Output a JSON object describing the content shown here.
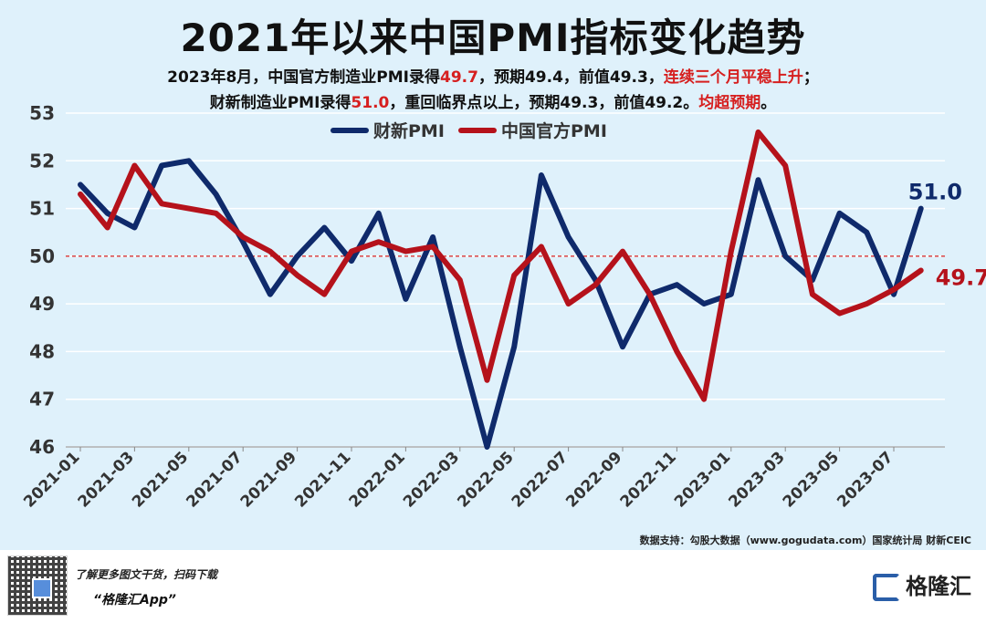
{
  "header": {
    "title": "2021年以来中国PMI指标变化趋势",
    "sub1": {
      "a": "2023年8月，中国官方制造业PMI录得",
      "b": "49.7",
      "c": "，预期49.4，前值49.3，",
      "d": "连续三个月平稳上升",
      "e": "；"
    },
    "sub2": {
      "a": "财新制造业PMI录得",
      "b": "51.0",
      "c": "，重回临界点以上，预期49.3，前值49.2。",
      "d": "均超预期",
      "e": "。"
    }
  },
  "source": "数据支持：勾股大数据（www.gogudata.com）国家统计局 财新CEIC",
  "footer": {
    "promo1": "了解更多图文干货，扫码下载",
    "promo2": "“格隆汇App”",
    "brand": "格隆汇"
  },
  "colors": {
    "caixin": "#0f2a6b",
    "official": "#b5121b",
    "threshold": "#d61f1f",
    "grid": "#ffffff"
  },
  "chart_data": {
    "type": "line",
    "title": "2021年以来中国PMI指标变化趋势",
    "xlabel": "",
    "ylabel": "",
    "ylim": [
      46,
      53
    ],
    "yticks": [
      46,
      47,
      48,
      49,
      50,
      51,
      52,
      53
    ],
    "x": [
      "2021-01",
      "2021-02",
      "2021-03",
      "2021-04",
      "2021-05",
      "2021-06",
      "2021-07",
      "2021-08",
      "2021-09",
      "2021-10",
      "2021-11",
      "2021-12",
      "2022-01",
      "2022-02",
      "2022-03",
      "2022-04",
      "2022-05",
      "2022-06",
      "2022-07",
      "2022-08",
      "2022-09",
      "2022-10",
      "2022-11",
      "2022-12",
      "2023-01",
      "2023-02",
      "2023-03",
      "2023-04",
      "2023-05",
      "2023-06",
      "2023-07",
      "2023-08"
    ],
    "xtick_labels": [
      "2021-01",
      "2021-03",
      "2021-05",
      "2021-07",
      "2021-09",
      "2021-11",
      "2022-01",
      "2022-03",
      "2022-05",
      "2022-07",
      "2022-09",
      "2022-11",
      "2023-01",
      "2023-03",
      "2023-05",
      "2023-07"
    ],
    "threshold": 50,
    "legend_position": "top",
    "grid": true,
    "series": [
      {
        "name": "财新PMI",
        "color": "#0f2a6b",
        "end_label": "51.0",
        "values": [
          51.5,
          50.9,
          50.6,
          51.9,
          52.0,
          51.3,
          50.3,
          49.2,
          50.0,
          50.6,
          49.9,
          50.9,
          49.1,
          50.4,
          48.1,
          46.0,
          48.1,
          51.7,
          50.4,
          49.5,
          48.1,
          49.2,
          49.4,
          49.0,
          49.2,
          51.6,
          50.0,
          49.5,
          50.9,
          50.5,
          49.2,
          51.0
        ]
      },
      {
        "name": "中国官方PMI",
        "color": "#b5121b",
        "end_label": "49.7",
        "values": [
          51.3,
          50.6,
          51.9,
          51.1,
          51.0,
          50.9,
          50.4,
          50.1,
          49.6,
          49.2,
          50.1,
          50.3,
          50.1,
          50.2,
          49.5,
          47.4,
          49.6,
          50.2,
          49.0,
          49.4,
          50.1,
          49.2,
          48.0,
          47.0,
          50.1,
          52.6,
          51.9,
          49.2,
          48.8,
          49.0,
          49.3,
          49.7
        ]
      }
    ]
  }
}
